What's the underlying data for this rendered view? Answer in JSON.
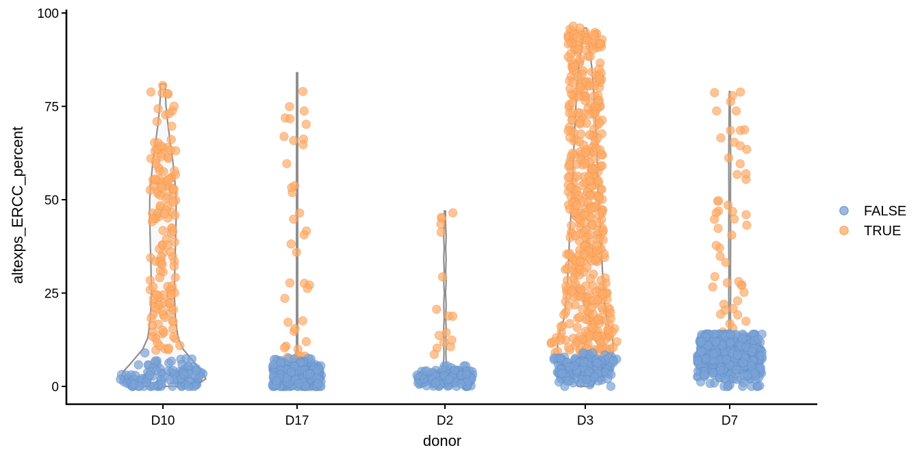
{
  "chart_data": {
    "type": "violin-beeswarm",
    "xlabel": "donor",
    "ylabel": "altexps_ERCC_percent",
    "ylim": [
      -4,
      101
    ],
    "yticks": [
      0,
      25,
      50,
      75,
      100
    ],
    "yticks_labels": [
      "0",
      "25",
      "50",
      "75",
      "100"
    ],
    "categories": [
      "D10",
      "D17",
      "D2",
      "D3",
      "D7"
    ],
    "grid": false,
    "legend": {
      "position": "right",
      "entries": [
        {
          "label": "FALSE",
          "color": "#7aa3d6"
        },
        {
          "label": "TRUE",
          "color": "#ffab66"
        }
      ]
    },
    "groups": [
      {
        "donor": "D10",
        "max": 81,
        "violin": [
          [
            0,
            0.5
          ],
          [
            2,
            0.68
          ],
          [
            4,
            0.63
          ],
          [
            6,
            0.52
          ],
          [
            8,
            0.42
          ],
          [
            10,
            0.32
          ],
          [
            13,
            0.24
          ],
          [
            18,
            0.2
          ],
          [
            25,
            0.18
          ],
          [
            32,
            0.19
          ],
          [
            38,
            0.2
          ],
          [
            45,
            0.21
          ],
          [
            50,
            0.21
          ],
          [
            55,
            0.19
          ],
          [
            60,
            0.16
          ],
          [
            65,
            0.12
          ],
          [
            70,
            0.08
          ],
          [
            75,
            0.05
          ],
          [
            78,
            0.04
          ],
          [
            81,
            0.04
          ]
        ],
        "false_points": {
          "n": 110,
          "min": 0,
          "max": 9,
          "center": 2.5,
          "spread": 0.66
        },
        "true_points": {
          "n": 155,
          "min": 9.5,
          "max": 81,
          "center": 45,
          "spread": 0.6
        }
      },
      {
        "donor": "D17",
        "max": 84,
        "violin": [
          [
            0,
            0.06
          ],
          [
            2,
            0.08
          ],
          [
            4,
            0.06
          ],
          [
            6,
            0.04
          ],
          [
            8,
            0.02
          ],
          [
            10,
            0.01
          ],
          [
            15,
            0.01
          ],
          [
            84,
            0.01
          ]
        ],
        "false_points": {
          "n": 260,
          "min": 0,
          "max": 7.5,
          "center": 3,
          "spread": 0.72
        },
        "true_points": {
          "n": 38,
          "min": 7.5,
          "max": 84,
          "center": 14,
          "spread": 0.62
        }
      },
      {
        "donor": "D2",
        "max": 47,
        "violin": [
          [
            0,
            0.06
          ],
          [
            1,
            0.14
          ],
          [
            2,
            0.16
          ],
          [
            3,
            0.1
          ],
          [
            5,
            0.04
          ],
          [
            7,
            0.02
          ],
          [
            9,
            0.015
          ],
          [
            11,
            0.02
          ],
          [
            13,
            0.015
          ],
          [
            16,
            0.02
          ],
          [
            18,
            0.012
          ],
          [
            22,
            0.02
          ],
          [
            25,
            0.01
          ],
          [
            28,
            0.02
          ],
          [
            31,
            0.012
          ],
          [
            34,
            0.02
          ],
          [
            37,
            0.012
          ],
          [
            40,
            0.02
          ],
          [
            44,
            0.01
          ],
          [
            47,
            0.01
          ]
        ],
        "false_points": {
          "n": 150,
          "min": 0,
          "max": 5.5,
          "center": 2.2,
          "spread": 0.82
        },
        "true_points": {
          "n": 16,
          "min": 6,
          "max": 47.5,
          "center": 20,
          "spread": 0.5
        }
      },
      {
        "donor": "D3",
        "max": 96,
        "violin": [
          [
            0,
            0.12
          ],
          [
            3,
            0.22
          ],
          [
            6,
            0.36
          ],
          [
            9,
            0.44
          ],
          [
            12,
            0.44
          ],
          [
            15,
            0.4
          ],
          [
            18,
            0.34
          ],
          [
            22,
            0.31
          ],
          [
            26,
            0.29
          ],
          [
            32,
            0.27
          ],
          [
            40,
            0.25
          ],
          [
            48,
            0.22
          ],
          [
            56,
            0.2
          ],
          [
            64,
            0.18
          ],
          [
            72,
            0.16
          ],
          [
            80,
            0.13
          ],
          [
            86,
            0.1
          ],
          [
            90,
            0.07
          ],
          [
            94,
            0.04
          ],
          [
            96,
            0.02
          ]
        ],
        "false_points": {
          "n": 150,
          "min": 0,
          "max": 9,
          "center": 4.5,
          "spread": 0.82
        },
        "true_points": {
          "n": 480,
          "min": 9,
          "max": 96.5,
          "center": 30,
          "spread": 0.8
        }
      },
      {
        "donor": "D7",
        "max": 79,
        "violin": [
          [
            0,
            0.01
          ],
          [
            4,
            0.05
          ],
          [
            7,
            0.1
          ],
          [
            9,
            0.08
          ],
          [
            12,
            0.04
          ],
          [
            15,
            0.015
          ],
          [
            20,
            0.012
          ],
          [
            25,
            0.015
          ],
          [
            30,
            0.012
          ],
          [
            40,
            0.015
          ],
          [
            50,
            0.012
          ],
          [
            60,
            0.015
          ],
          [
            70,
            0.012
          ],
          [
            79,
            0.005
          ]
        ],
        "false_points": {
          "n": 420,
          "min": 0,
          "max": 14,
          "center": 8,
          "spread": 0.95
        },
        "true_points": {
          "n": 52,
          "min": 14,
          "max": 79,
          "center": 45,
          "spread": 0.8
        }
      }
    ]
  }
}
